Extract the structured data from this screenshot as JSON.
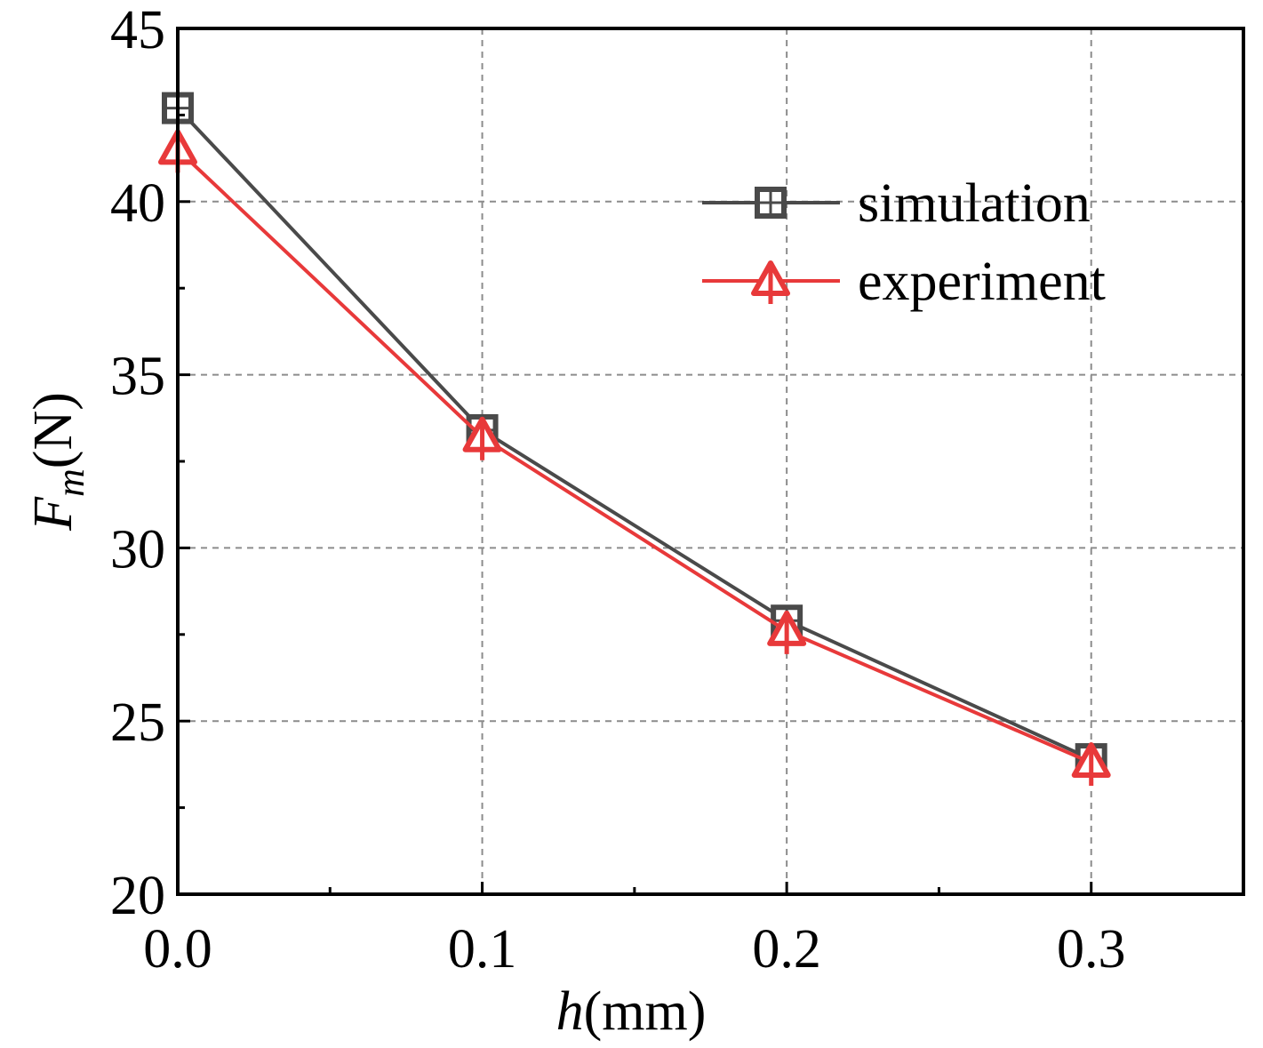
{
  "chart_data": {
    "type": "line",
    "title": "",
    "xlabel_italic": "h",
    "xlabel_rest": "(mm)",
    "ylabel_italic": "F",
    "ylabel_sub": "m",
    "ylabel_rest": "(N)",
    "xlim": [
      0.0,
      0.35
    ],
    "ylim": [
      20,
      45
    ],
    "xticks": [
      0.0,
      0.1,
      0.2,
      0.3
    ],
    "xtick_labels": [
      "0.0",
      "0.1",
      "0.2",
      "0.3"
    ],
    "xminor": [
      0.05,
      0.15,
      0.25
    ],
    "yticks": [
      20,
      25,
      30,
      35,
      40,
      45
    ],
    "ytick_labels": [
      "20",
      "25",
      "30",
      "35",
      "40",
      "45"
    ],
    "yminor": [
      22.5,
      27.5,
      32.5,
      37.5,
      42.5
    ],
    "grid": true,
    "legend_position": "top-right",
    "x": [
      0.0,
      0.1,
      0.2,
      0.3
    ],
    "series": [
      {
        "name": "simulation",
        "marker": "square",
        "color": "#4a4a4a",
        "values": [
          42.7,
          33.4,
          27.9,
          23.9
        ]
      },
      {
        "name": "experiment",
        "marker": "triangle",
        "color": "#e8393a",
        "values": [
          41.5,
          33.2,
          27.6,
          23.8
        ]
      }
    ]
  }
}
